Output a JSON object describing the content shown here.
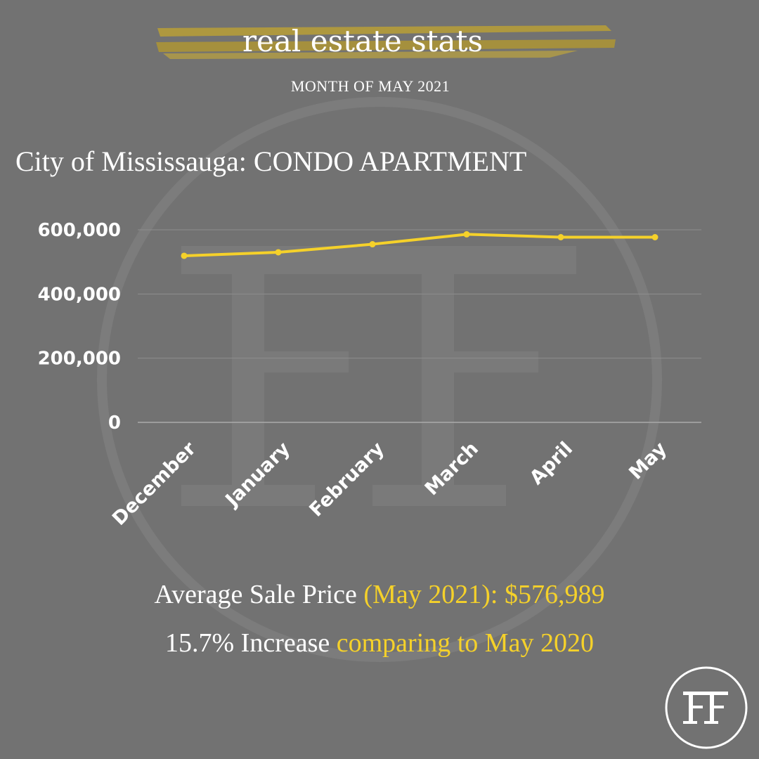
{
  "header": {
    "title": "real estate stats",
    "subtitle": "MONTH OF MAY 2021"
  },
  "chart_title": "City of Mississauga: CONDO APARTMENT",
  "chart_data": {
    "type": "line",
    "title": "City of Mississauga: CONDO APARTMENT",
    "xlabel": "",
    "ylabel": "",
    "categories": [
      "December",
      "January",
      "February",
      "March",
      "April",
      "May"
    ],
    "series": [
      {
        "values": [
          519000,
          530000,
          555000,
          586000,
          577000,
          577000
        ]
      }
    ],
    "ylim": [
      0,
      600000
    ],
    "yticks": [
      "600,000",
      "400,000",
      "200,000",
      "0"
    ],
    "ytick_values": [
      600000,
      400000,
      200000,
      0
    ],
    "grid": true,
    "line_color": "#f5d12a"
  },
  "stats": {
    "line1_white": "Average Sale Price",
    "line1_highlight": "(May 2021): $576,989",
    "line2_white": "15.7% Increase",
    "line2_highlight": "comparing to May 2020"
  },
  "colors": {
    "background": "#727272",
    "accent": "#f5d12a",
    "brush": "#b19a3c",
    "text": "#ffffff"
  },
  "logo": {
    "monogram": "FF"
  }
}
